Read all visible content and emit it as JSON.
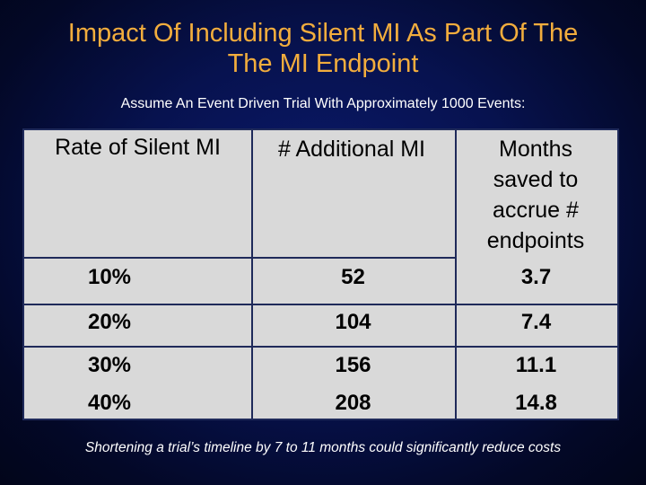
{
  "title": {
    "line1": "Impact Of Including Silent MI As Part Of The",
    "line2": "The MI Endpoint"
  },
  "subtitle": "Assume An Event Driven Trial With Approximately 1000 Events:",
  "table": {
    "headers": [
      "Rate of Silent MI",
      "# Additional MI",
      "Months saved to accrue # endpoints"
    ],
    "rows": [
      [
        "10%",
        "52",
        "3.7"
      ],
      [
        "20%",
        "104",
        "7.4"
      ],
      [
        "30%",
        "156",
        "11.1"
      ],
      [
        "40%",
        "208",
        "14.8"
      ]
    ]
  },
  "footnote": "Shortening a trial’s timeline by 7 to 11 months could significantly reduce costs",
  "colors": {
    "title": "#f2ad3d",
    "table_bg": "#d9d9d9",
    "background": "#07124f"
  }
}
